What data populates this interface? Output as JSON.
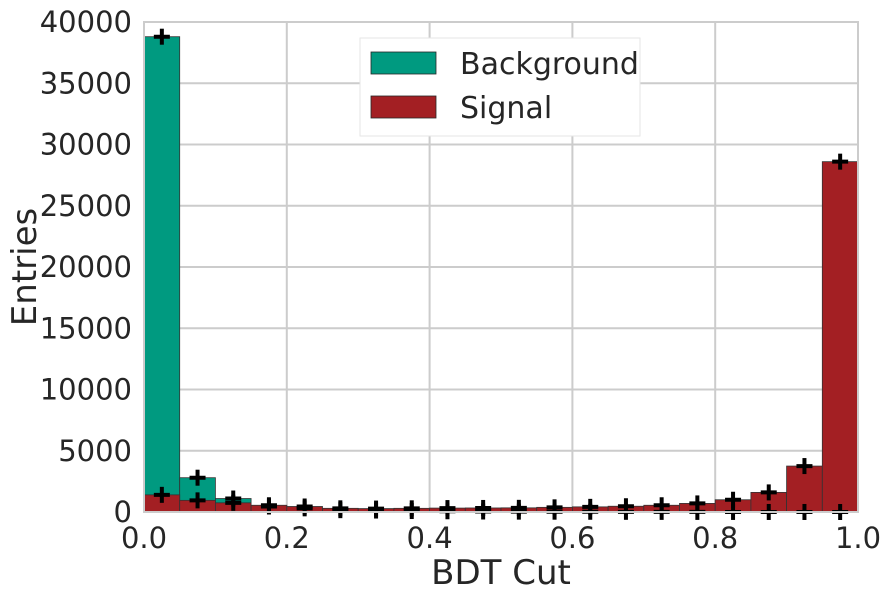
{
  "chart_data": {
    "type": "bar",
    "xlabel": "BDT Cut",
    "ylabel": "Entries",
    "xlim": [
      0.0,
      1.0
    ],
    "ylim": [
      0,
      40000
    ],
    "x_ticks": [
      "0.0",
      "0.2",
      "0.4",
      "0.6",
      "0.8",
      "1.0"
    ],
    "y_ticks": [
      "0",
      "5000",
      "10000",
      "15000",
      "20000",
      "25000",
      "30000",
      "35000",
      "40000"
    ],
    "grid": true,
    "legend_position": "top-center",
    "bin_edges": [
      0.0,
      0.05,
      0.1,
      0.15,
      0.2,
      0.25,
      0.3,
      0.35,
      0.4,
      0.45,
      0.5,
      0.55,
      0.6,
      0.65,
      0.7,
      0.75,
      0.8,
      0.85,
      0.9,
      0.95,
      1.0
    ],
    "series": [
      {
        "name": "Background",
        "color": "#009a80",
        "values": [
          38800,
          2800,
          1100,
          450,
          300,
          150,
          120,
          80,
          60,
          40,
          30,
          25,
          20,
          15,
          10,
          8,
          5,
          3,
          2,
          1
        ]
      },
      {
        "name": "Signal",
        "color": "#a31f23",
        "values": [
          1400,
          950,
          750,
          550,
          450,
          300,
          280,
          300,
          320,
          330,
          340,
          380,
          420,
          470,
          550,
          700,
          1000,
          1600,
          3750,
          28600
        ]
      }
    ],
    "markers": "plus"
  }
}
